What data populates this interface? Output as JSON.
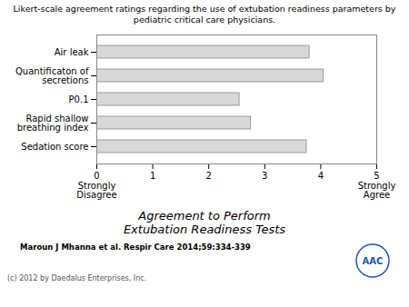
{
  "chart_data": {
    "type": "bar",
    "orientation": "horizontal",
    "title": "Likert-scale agreement ratings regarding the use of extubation readiness parameters by\npediatric critical care physicians.",
    "categories": [
      "Air leak",
      "Quantificaton of\nsecretions",
      "P0.1",
      "Rapid shallow\nbreathing index",
      "Sedation score"
    ],
    "values": [
      3.8,
      4.05,
      2.55,
      2.75,
      3.75
    ],
    "color": "#d8d8d8",
    "xlim": [
      0,
      5
    ],
    "xticks": [
      0,
      1,
      2,
      3,
      4,
      5
    ],
    "xlabel": "Agreement to Perform\nExtubation Readiness Tests",
    "annotations": [
      {
        "text": "Strongly\nDisagree",
        "x": 0
      },
      {
        "text": "Strongly\nAgree",
        "x": 5
      }
    ],
    "citation": "Maroun J Mhanna et al. Respir Care 2014;59:334-339",
    "copyright": "(c) 2012 by Daedalus Enterprises, Inc.",
    "logo_text": "AAC",
    "grid": false
  }
}
